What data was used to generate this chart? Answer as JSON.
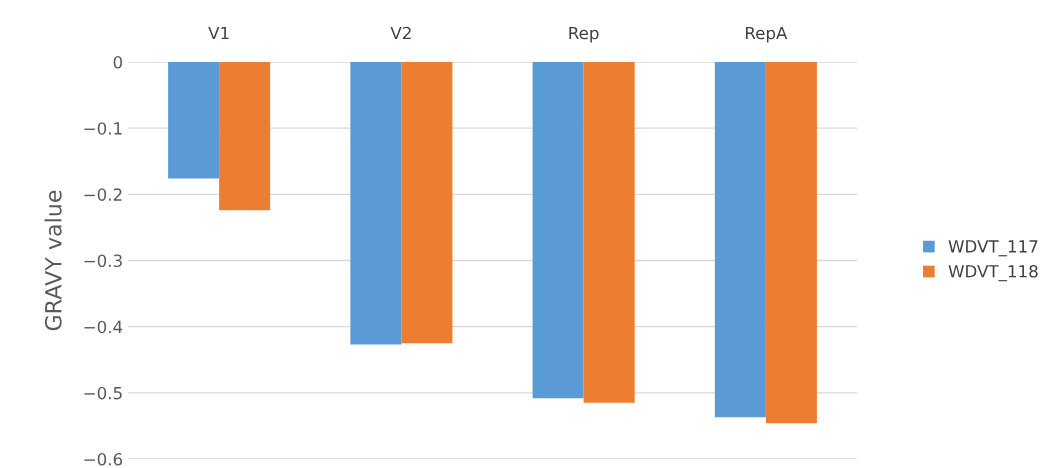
{
  "chart_data": {
    "type": "bar",
    "ylabel": "GRAVY value",
    "categories": [
      "V1",
      "V2",
      "Rep",
      "RepA"
    ],
    "series": [
      {
        "name": "WDVT_117",
        "color": "#5b9bd5",
        "values": [
          -0.176,
          -0.427,
          -0.508,
          -0.537
        ]
      },
      {
        "name": "WDVT_118",
        "color": "#ed7d31",
        "values": [
          -0.224,
          -0.425,
          -0.515,
          -0.546
        ]
      }
    ],
    "ylim": [
      -0.6,
      0
    ],
    "yticks": [
      {
        "value": -0.6,
        "label": "−0.6"
      },
      {
        "value": -0.5,
        "label": "−0.5"
      },
      {
        "value": -0.4,
        "label": "−0.4"
      },
      {
        "value": -0.3,
        "label": "−0.3"
      },
      {
        "value": -0.2,
        "label": "−0.2"
      },
      {
        "value": -0.1,
        "label": "−0.1"
      },
      0
    ],
    "grid": "y",
    "legend": "right"
  }
}
